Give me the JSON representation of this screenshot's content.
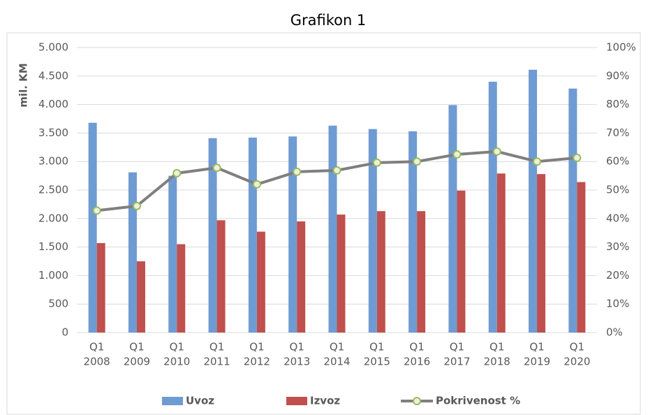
{
  "chart_data": {
    "type": "bar_line",
    "title": "Grafikon 1",
    "y_label": "mil. KM",
    "categories": [
      [
        "Q1",
        "2008"
      ],
      [
        "Q1",
        "2009"
      ],
      [
        "Q1",
        "2010"
      ],
      [
        "Q1",
        "2011"
      ],
      [
        "Q1",
        "2012"
      ],
      [
        "Q1",
        "2013"
      ],
      [
        "Q1",
        "2014"
      ],
      [
        "Q1",
        "2015"
      ],
      [
        "Q1",
        "2016"
      ],
      [
        "Q1",
        "2017"
      ],
      [
        "Q1",
        "2018"
      ],
      [
        "Q1",
        "2019"
      ],
      [
        "Q1",
        "2020"
      ]
    ],
    "series": [
      {
        "name": "Uvoz",
        "type": "bar",
        "color": "#6f9bd3",
        "values": [
          3680,
          2810,
          2750,
          3410,
          3420,
          3440,
          3630,
          3570,
          3530,
          3990,
          4400,
          4610,
          4280
        ]
      },
      {
        "name": "Izvoz",
        "type": "bar",
        "color": "#c0504d",
        "values": [
          1570,
          1250,
          1550,
          1970,
          1770,
          1950,
          2070,
          2130,
          2130,
          2490,
          2790,
          2780,
          2640
        ]
      },
      {
        "name": "Pokrivenost %",
        "type": "line",
        "axis": "y2",
        "color": "#7f7f7f",
        "marker_color": "#9bbb59",
        "values": [
          42.8,
          44.4,
          55.9,
          57.8,
          52.0,
          56.4,
          56.9,
          59.6,
          60.0,
          62.5,
          63.5,
          60.0,
          61.3
        ]
      }
    ],
    "ylim": [
      0,
      5000
    ],
    "yticks": [
      0,
      500,
      {
        "value": 1000,
        "label": "1.000"
      },
      {
        "value": 1500,
        "label": "1.500"
      },
      {
        "value": 2000,
        "label": "2.000"
      },
      {
        "value": 2500,
        "label": "2.500"
      },
      {
        "value": 3000,
        "label": "3.000"
      },
      {
        "value": 3500,
        "label": "3.500"
      },
      {
        "value": 4000,
        "label": "4.000"
      },
      {
        "value": 4500,
        "label": "4.500"
      },
      {
        "value": 5000,
        "label": "5.000"
      }
    ],
    "y2lim": [
      0,
      100
    ],
    "y2ticks": [
      {
        "value": 0,
        "label": "0%"
      },
      {
        "value": 10,
        "label": "10%"
      },
      {
        "value": 20,
        "label": "20%"
      },
      {
        "value": 30,
        "label": "30%"
      },
      {
        "value": 40,
        "label": "40%"
      },
      {
        "value": 50,
        "label": "50%"
      },
      {
        "value": 60,
        "label": "60%"
      },
      {
        "value": 70,
        "label": "70%"
      },
      {
        "value": 80,
        "label": "80%"
      },
      {
        "value": 90,
        "label": "90%"
      },
      {
        "value": 100,
        "label": "100%"
      }
    ],
    "grid": true,
    "legend": "bottom"
  }
}
